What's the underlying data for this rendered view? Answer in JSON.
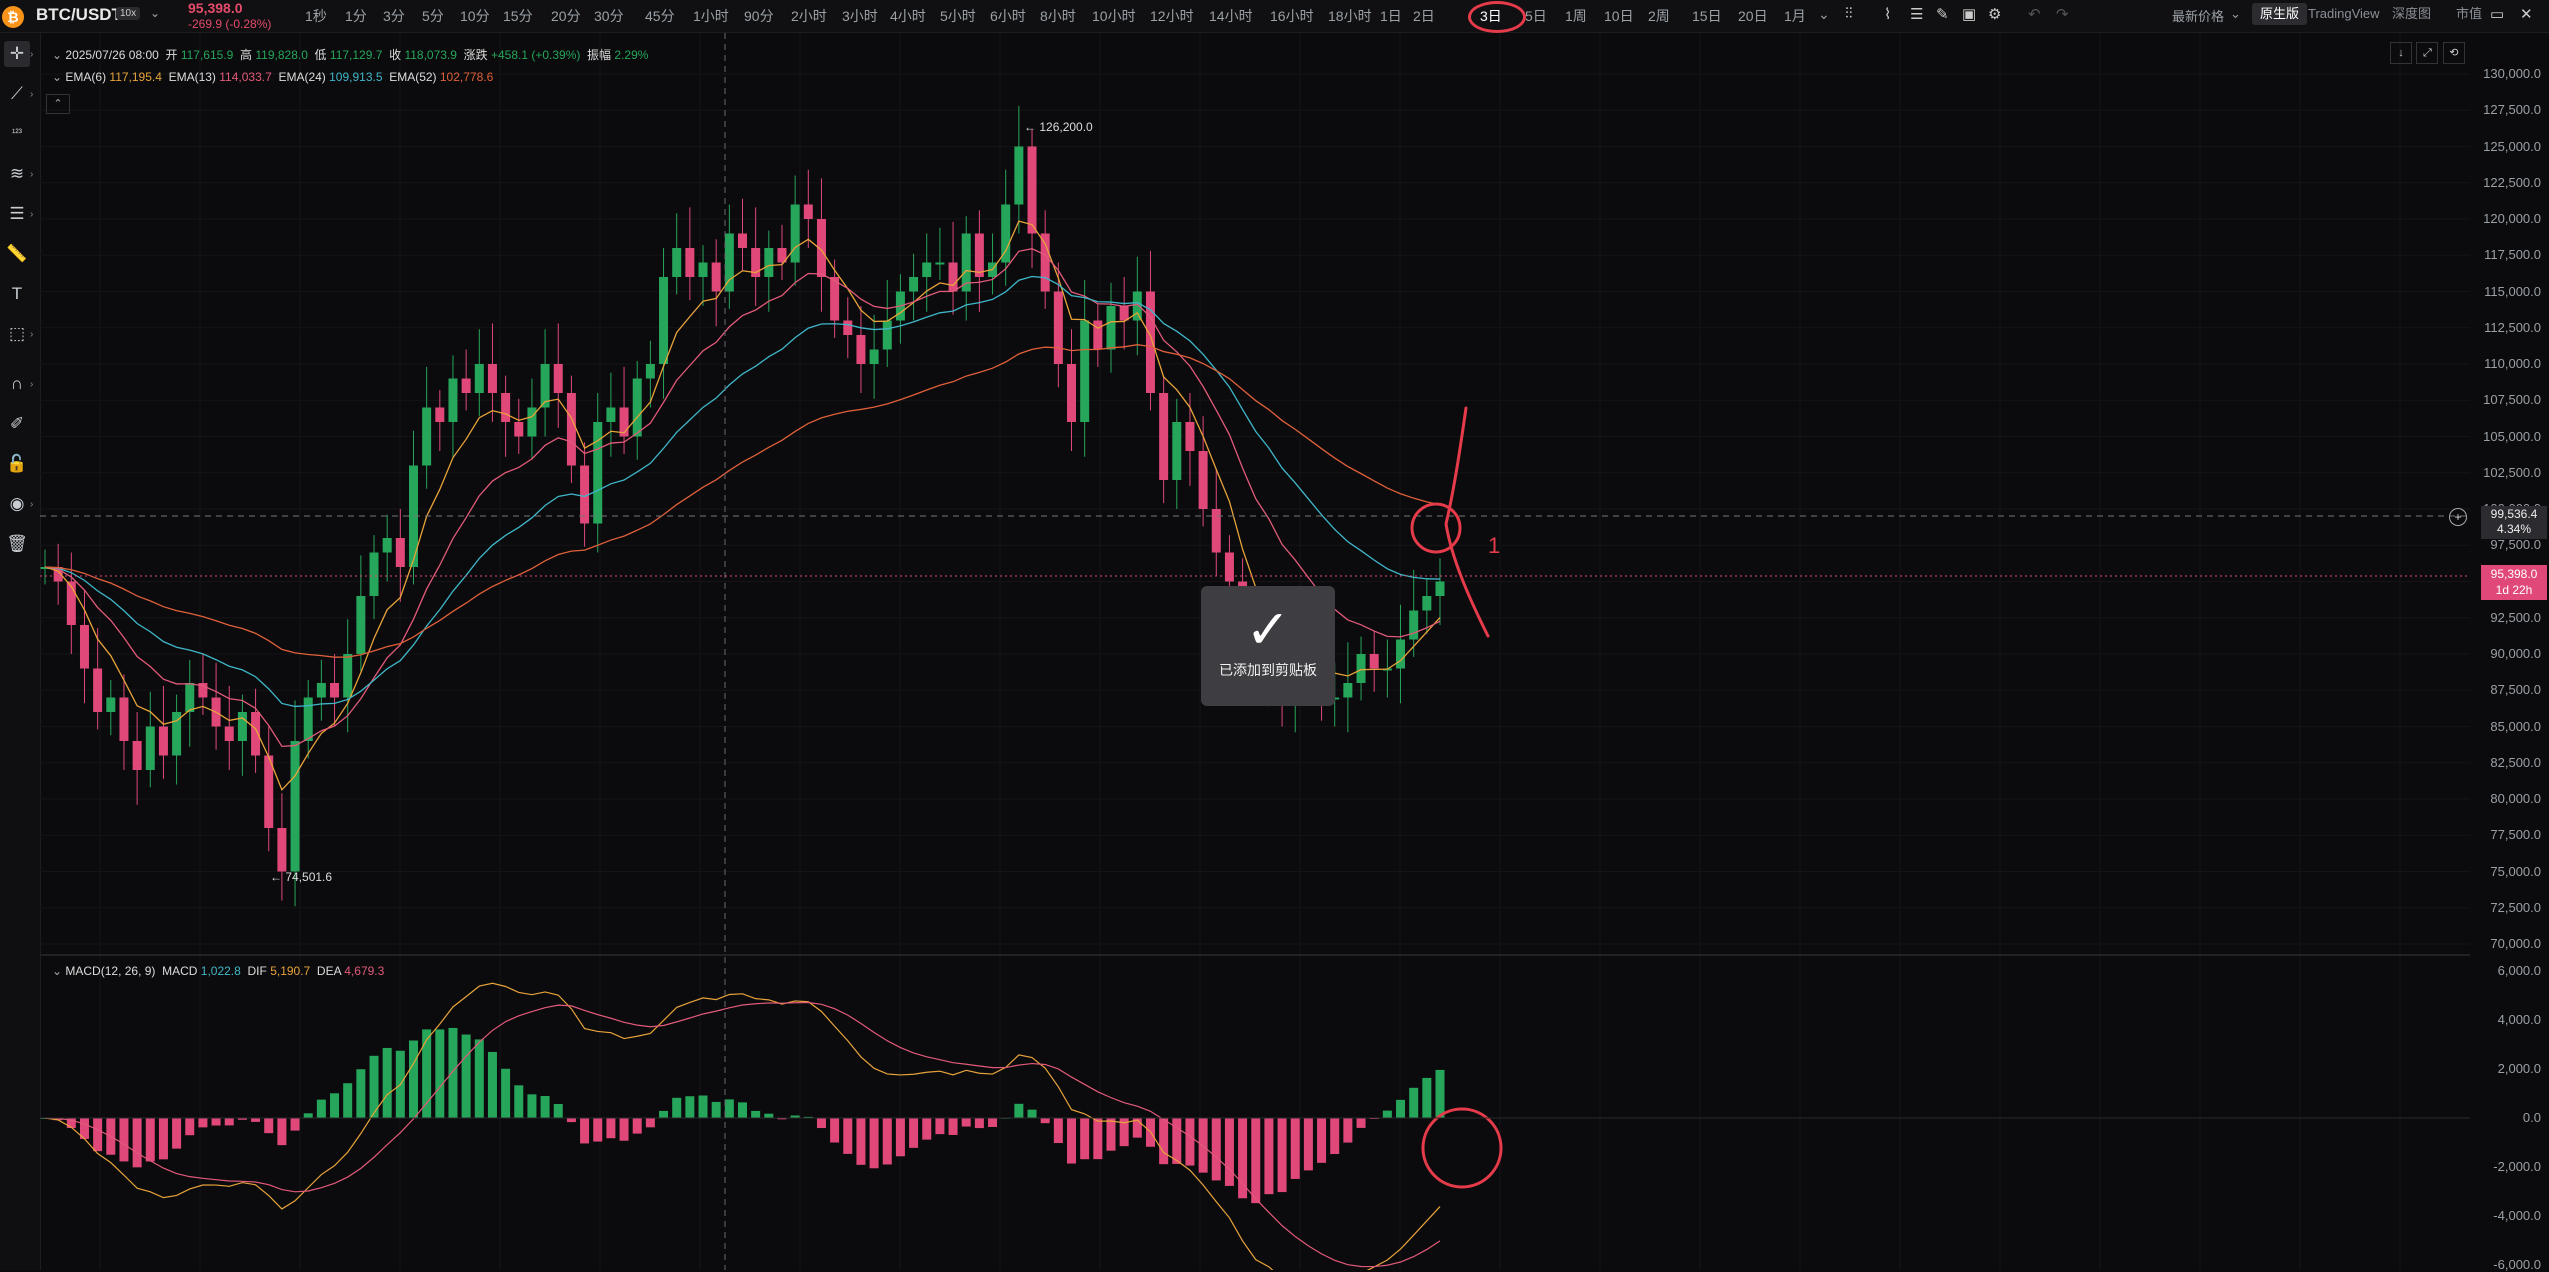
{
  "header": {
    "pair": "BTC/USDT",
    "leverage": "10x",
    "last_price": "95,398.0",
    "change": "-269.9 (-0.28%)",
    "timeframes": [
      "1秒",
      "1分",
      "3分",
      "5分",
      "10分",
      "15分",
      "20分",
      "30分",
      "45分",
      "1小时",
      "90分",
      "2小时",
      "3小时",
      "4小时",
      "5小时",
      "6小时",
      "8小时",
      "10小时",
      "12小时",
      "14小时",
      "16小时",
      "18小时",
      "1日",
      "2日",
      "3日",
      "5日",
      "1周",
      "10日",
      "2周",
      "15日",
      "20日",
      "1月"
    ],
    "active_timeframe": "3日",
    "price_mode": "最新价格",
    "view_tabs": [
      "原生版",
      "TradingView",
      "深度图",
      "市值"
    ],
    "active_view": "原生版"
  },
  "ohlc": {
    "date": "2025/07/26 08:00",
    "open_label": "开",
    "open": "117,615.9",
    "high_label": "高",
    "high": "119,828.0",
    "low_label": "低",
    "low": "117,129.7",
    "close_label": "收",
    "close": "118,073.9",
    "change_label": "涨跌",
    "change": "+458.1 (+0.39%)",
    "amp_label": "振幅",
    "amp": "2.29%"
  },
  "ema": {
    "label": "EMA(6)",
    "v6": "117,195.4",
    "label13": "EMA(13)",
    "v13": "114,033.7",
    "label24": "EMA(24)",
    "v24": "109,913.5",
    "label52": "EMA(52)",
    "v52": "102,778.6"
  },
  "macd": {
    "label": "MACD(12, 26, 9)",
    "macd_label": "MACD",
    "macd": "1,022.8",
    "dif_label": "DIF",
    "dif": "5,190.7",
    "dea_label": "DEA",
    "dea": "4,679.3"
  },
  "price_axis": [
    "130,000.0",
    "127,500.0",
    "125,000.0",
    "122,500.0",
    "120,000.0",
    "117,500.0",
    "115,000.0",
    "112,500.0",
    "110,000.0",
    "107,500.0",
    "105,000.0",
    "102,500.0",
    "100,000.0",
    "97,500.0",
    "95,000.0",
    "92,500.0",
    "90,000.0",
    "87,500.0",
    "85,000.0",
    "82,500.0",
    "80,000.0",
    "77,500.0",
    "75,000.0",
    "72,500.0",
    "70,000.0"
  ],
  "macd_axis": [
    "6,000.0",
    "4,000.0",
    "2,000.0",
    "0.0",
    "-2,000.0",
    "-4,000.0",
    "-6,000.0"
  ],
  "annotations": {
    "high_marker": "126,200.0",
    "low_marker": "74,501.6",
    "crosshair_price": "99,536.4",
    "crosshair_pct": "4.34%",
    "current_price": "95,398.0",
    "countdown": "1d 22h",
    "drawing_number": "1"
  },
  "toast": {
    "message": "已添加到剪贴板"
  },
  "colors": {
    "up": "#26a65b",
    "down": "#e0487a",
    "ema6": "#e8a33a",
    "ema13": "#e25a7a",
    "ema24": "#3fb7c9",
    "ema52": "#e0603a",
    "annotation": "#e53b4a"
  }
}
